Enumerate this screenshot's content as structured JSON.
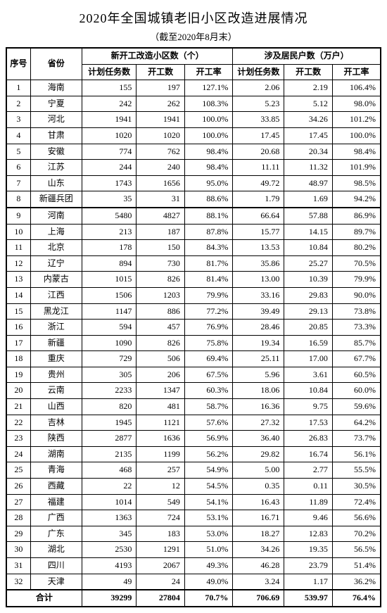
{
  "title": "2020年全国城镇老旧小区改造进展情况",
  "subtitle": "（截至2020年8月末）",
  "headers": {
    "seq": "序号",
    "province": "省份",
    "group1": "新开工改造小区数（个）",
    "group2": "涉及居民户数（万户）",
    "plan": "计划任务数",
    "started": "开工数",
    "rate": "开工率"
  },
  "rows": [
    {
      "n": "1",
      "p": "海南",
      "a": "155",
      "b": "197",
      "c": "127.1%",
      "d": "2.06",
      "e": "2.19",
      "f": "106.4%"
    },
    {
      "n": "2",
      "p": "宁夏",
      "a": "242",
      "b": "262",
      "c": "108.3%",
      "d": "5.23",
      "e": "5.12",
      "f": "98.0%"
    },
    {
      "n": "3",
      "p": "河北",
      "a": "1941",
      "b": "1941",
      "c": "100.0%",
      "d": "33.85",
      "e": "34.26",
      "f": "101.2%"
    },
    {
      "n": "4",
      "p": "甘肃",
      "a": "1020",
      "b": "1020",
      "c": "100.0%",
      "d": "17.45",
      "e": "17.45",
      "f": "100.0%"
    },
    {
      "n": "5",
      "p": "安徽",
      "a": "774",
      "b": "762",
      "c": "98.4%",
      "d": "20.68",
      "e": "20.34",
      "f": "98.4%"
    },
    {
      "n": "6",
      "p": "江苏",
      "a": "244",
      "b": "240",
      "c": "98.4%",
      "d": "11.11",
      "e": "11.32",
      "f": "101.9%"
    },
    {
      "n": "7",
      "p": "山东",
      "a": "1743",
      "b": "1656",
      "c": "95.0%",
      "d": "49.72",
      "e": "48.97",
      "f": "98.5%"
    },
    {
      "n": "8",
      "p": "新疆兵团",
      "a": "35",
      "b": "31",
      "c": "88.6%",
      "d": "1.79",
      "e": "1.69",
      "f": "94.2%"
    },
    {
      "n": "9",
      "p": "河南",
      "a": "5480",
      "b": "4827",
      "c": "88.1%",
      "d": "66.64",
      "e": "57.88",
      "f": "86.9%"
    },
    {
      "n": "10",
      "p": "上海",
      "a": "213",
      "b": "187",
      "c": "87.8%",
      "d": "15.77",
      "e": "14.15",
      "f": "89.7%"
    },
    {
      "n": "11",
      "p": "北京",
      "a": "178",
      "b": "150",
      "c": "84.3%",
      "d": "13.53",
      "e": "10.84",
      "f": "80.2%"
    },
    {
      "n": "12",
      "p": "辽宁",
      "a": "894",
      "b": "730",
      "c": "81.7%",
      "d": "35.86",
      "e": "25.27",
      "f": "70.5%"
    },
    {
      "n": "13",
      "p": "内蒙古",
      "a": "1015",
      "b": "826",
      "c": "81.4%",
      "d": "13.00",
      "e": "10.39",
      "f": "79.9%"
    },
    {
      "n": "14",
      "p": "江西",
      "a": "1506",
      "b": "1203",
      "c": "79.9%",
      "d": "33.16",
      "e": "29.83",
      "f": "90.0%"
    },
    {
      "n": "15",
      "p": "黑龙江",
      "a": "1147",
      "b": "886",
      "c": "77.2%",
      "d": "39.49",
      "e": "29.13",
      "f": "73.8%"
    },
    {
      "n": "16",
      "p": "浙江",
      "a": "594",
      "b": "457",
      "c": "76.9%",
      "d": "28.46",
      "e": "20.85",
      "f": "73.3%"
    },
    {
      "n": "17",
      "p": "新疆",
      "a": "1090",
      "b": "826",
      "c": "75.8%",
      "d": "19.34",
      "e": "16.59",
      "f": "85.7%"
    },
    {
      "n": "18",
      "p": "重庆",
      "a": "729",
      "b": "506",
      "c": "69.4%",
      "d": "25.11",
      "e": "17.00",
      "f": "67.7%"
    },
    {
      "n": "19",
      "p": "贵州",
      "a": "305",
      "b": "206",
      "c": "67.5%",
      "d": "5.96",
      "e": "3.61",
      "f": "60.5%"
    },
    {
      "n": "20",
      "p": "云南",
      "a": "2233",
      "b": "1347",
      "c": "60.3%",
      "d": "18.06",
      "e": "10.84",
      "f": "60.0%"
    },
    {
      "n": "21",
      "p": "山西",
      "a": "820",
      "b": "481",
      "c": "58.7%",
      "d": "16.36",
      "e": "9.75",
      "f": "59.6%"
    },
    {
      "n": "22",
      "p": "吉林",
      "a": "1945",
      "b": "1121",
      "c": "57.6%",
      "d": "27.32",
      "e": "17.53",
      "f": "64.2%"
    },
    {
      "n": "23",
      "p": "陕西",
      "a": "2877",
      "b": "1636",
      "c": "56.9%",
      "d": "36.40",
      "e": "26.83",
      "f": "73.7%"
    },
    {
      "n": "24",
      "p": "湖南",
      "a": "2135",
      "b": "1199",
      "c": "56.2%",
      "d": "29.82",
      "e": "16.74",
      "f": "56.1%"
    },
    {
      "n": "25",
      "p": "青海",
      "a": "468",
      "b": "257",
      "c": "54.9%",
      "d": "5.00",
      "e": "2.77",
      "f": "55.5%"
    },
    {
      "n": "26",
      "p": "西藏",
      "a": "22",
      "b": "12",
      "c": "54.5%",
      "d": "0.35",
      "e": "0.11",
      "f": "30.5%"
    },
    {
      "n": "27",
      "p": "福建",
      "a": "1014",
      "b": "549",
      "c": "54.1%",
      "d": "16.43",
      "e": "11.89",
      "f": "72.4%"
    },
    {
      "n": "28",
      "p": "广西",
      "a": "1363",
      "b": "724",
      "c": "53.1%",
      "d": "16.71",
      "e": "9.46",
      "f": "56.6%"
    },
    {
      "n": "29",
      "p": "广东",
      "a": "345",
      "b": "183",
      "c": "53.0%",
      "d": "18.27",
      "e": "12.83",
      "f": "70.2%"
    },
    {
      "n": "30",
      "p": "湖北",
      "a": "2530",
      "b": "1291",
      "c": "51.0%",
      "d": "34.26",
      "e": "19.35",
      "f": "56.5%"
    },
    {
      "n": "31",
      "p": "四川",
      "a": "4193",
      "b": "2067",
      "c": "49.3%",
      "d": "46.28",
      "e": "23.79",
      "f": "51.4%"
    },
    {
      "n": "32",
      "p": "天津",
      "a": "49",
      "b": "24",
      "c": "49.0%",
      "d": "3.24",
      "e": "1.17",
      "f": "36.2%"
    }
  ],
  "total": {
    "label": "合计",
    "a": "39299",
    "b": "27804",
    "c": "70.7%",
    "d": "706.69",
    "e": "539.97",
    "f": "76.4%"
  }
}
